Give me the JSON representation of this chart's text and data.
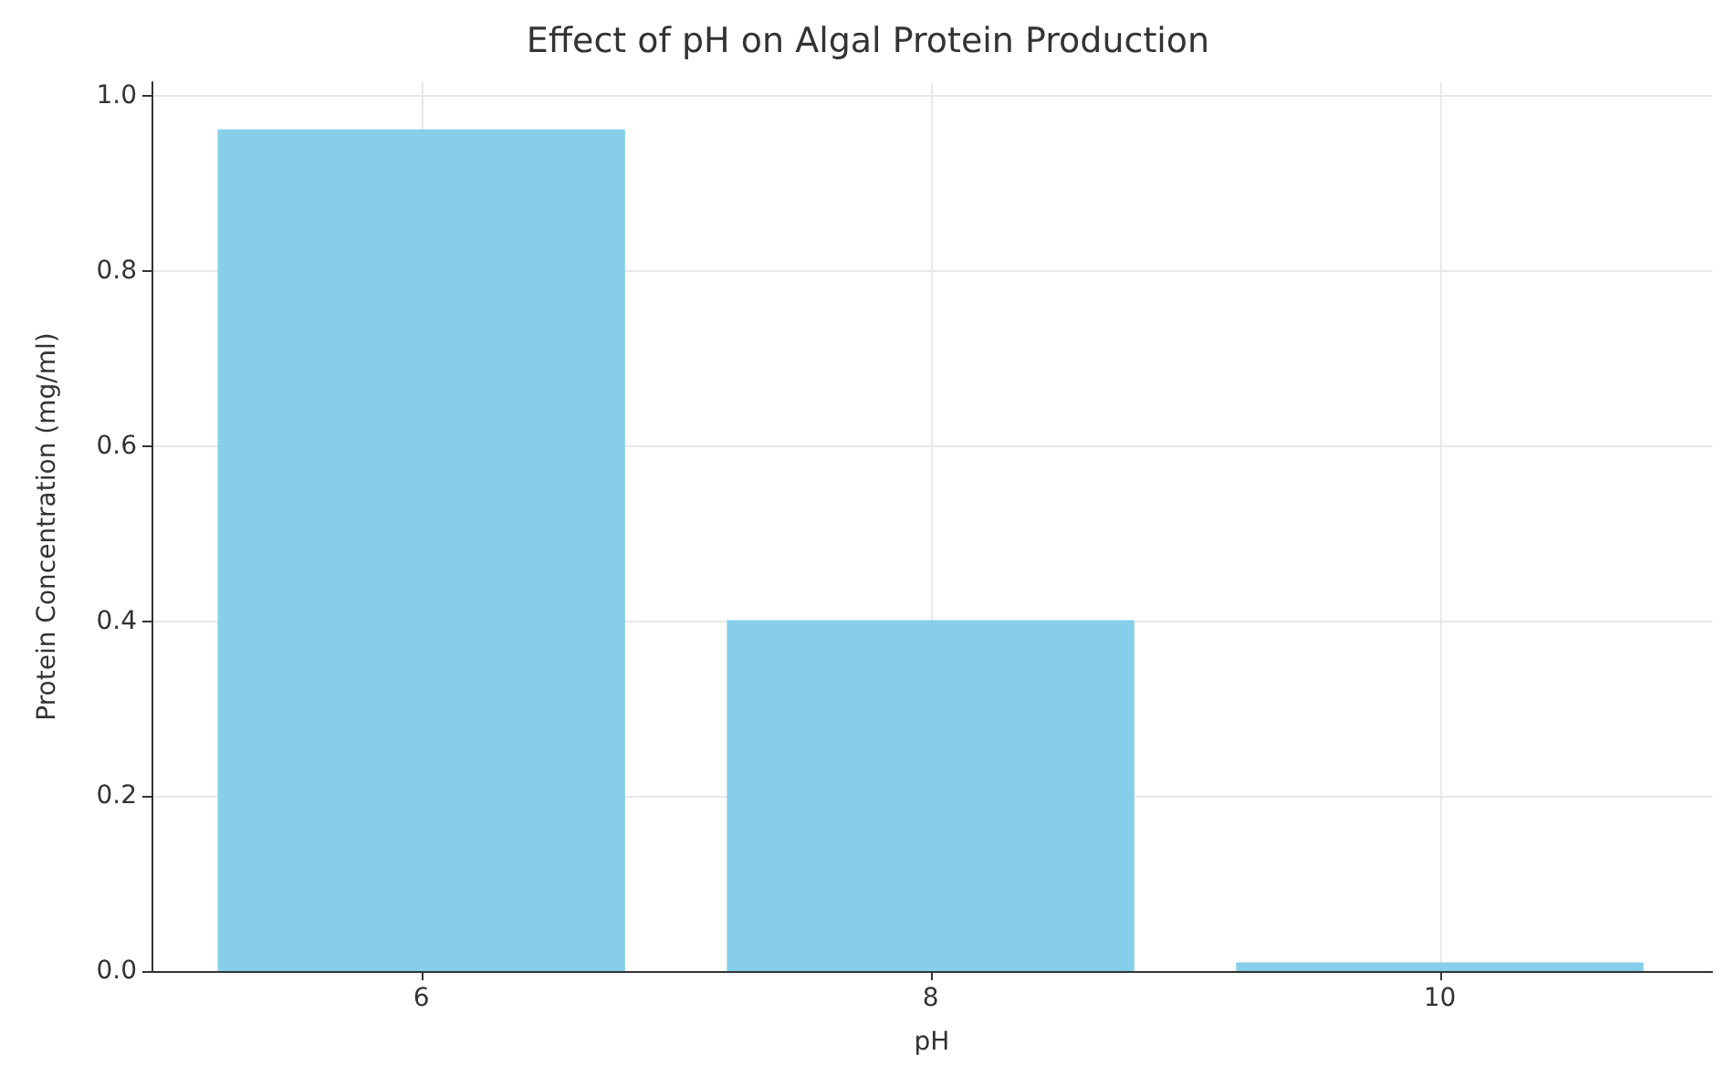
{
  "chart_data": {
    "type": "bar",
    "title": "Effect of pH on Algal Protein Production",
    "xlabel": "pH",
    "ylabel": "Protein Concentration (mg/ml)",
    "x": [
      6,
      8,
      10
    ],
    "values": [
      0.962,
      0.401,
      0.01
    ],
    "color": "#87ceeb",
    "xlim": [
      4.94,
      11.07
    ],
    "xticks": [
      6,
      8,
      10
    ],
    "ylim": [
      0,
      1.016
    ],
    "yticks": [
      {
        "value": 0,
        "label": "0.0"
      },
      {
        "value": 0.2,
        "label": "0.2"
      },
      {
        "value": 0.4,
        "label": "0.4"
      },
      {
        "value": 0.6,
        "label": "0.6"
      },
      {
        "value": 0.8,
        "label": "0.8"
      },
      {
        "value": 1,
        "label": "1.0"
      }
    ],
    "grid": true
  }
}
